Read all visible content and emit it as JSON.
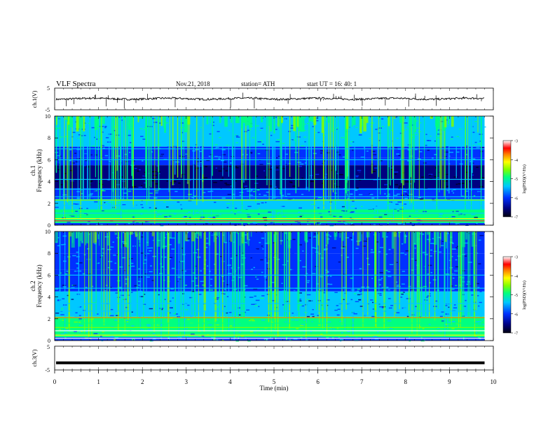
{
  "header": {
    "title": "VLF  Spectra",
    "date": "Nov.21, 2018",
    "station": "station= ATH",
    "start": "start  UT  =    16: 40: 1"
  },
  "chart_data": [
    {
      "type": "line",
      "panel": "ch1-waveform",
      "ylabel": "ch.1(V)",
      "ylim": [
        -5,
        5
      ],
      "yticks": [
        "5",
        "-5"
      ],
      "xlim": [
        0,
        10
      ],
      "x_extent_min": 9.8,
      "baseline_v": 0.1,
      "color": "#000000"
    },
    {
      "type": "heatmap",
      "panel": "ch1-spectrogram",
      "ylabel": "Frequency  (kHz)",
      "channel_label": "ch.1",
      "ylim": [
        0,
        10
      ],
      "yticks": [
        "0",
        "2",
        "4",
        "6",
        "8",
        "10"
      ],
      "xlim": [
        0,
        10
      ],
      "x_extent_min": 9.8,
      "colorbar": {
        "label": "log(PSD)(V²/Hz)",
        "range": [
          -7,
          -3
        ],
        "ticks": [
          "-3",
          "-4",
          "-5",
          "-6",
          "-7"
        ]
      }
    },
    {
      "type": "heatmap",
      "panel": "ch2-spectrogram",
      "ylabel": "Frequency  (kHz)",
      "channel_label": "ch.2",
      "ylim": [
        0,
        10
      ],
      "yticks": [
        "0",
        "2",
        "4",
        "6",
        "8",
        "10"
      ],
      "xlim": [
        0,
        10
      ],
      "x_extent_min": 9.8,
      "colorbar": {
        "label": "log(PSD)(V²/Hz)",
        "range": [
          -7,
          -3
        ],
        "ticks": [
          "-3",
          "-4",
          "-5",
          "-6",
          "-7"
        ]
      }
    },
    {
      "type": "line",
      "panel": "ch3-waveform",
      "ylabel": "ch.3(V)",
      "ylim": [
        -5,
        5
      ],
      "yticks": [
        "5",
        "-5"
      ],
      "xlim": [
        0,
        10
      ],
      "x_extent_min": 9.8,
      "constant_v": -2.0,
      "color": "#000000"
    }
  ],
  "xaxis": {
    "label": "Time  (min)",
    "ticks": [
      "0",
      "1",
      "2",
      "3",
      "4",
      "5",
      "6",
      "7",
      "8",
      "9",
      "10"
    ]
  },
  "colormap": [
    "#000010",
    "#000080",
    "#0030ff",
    "#00c8ff",
    "#00ff80",
    "#80ff00",
    "#ffff00",
    "#ff8000",
    "#ff0000",
    "#ffffff"
  ]
}
